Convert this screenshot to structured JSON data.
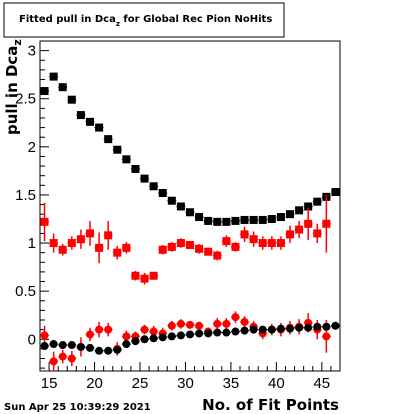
{
  "chart_data": {
    "type": "scatter",
    "title": {
      "main": "Fitted pull in Dca",
      "sub": "z",
      "rest": " for Global Rec Pion NoHits"
    },
    "xlabel": "No. of Fit Points",
    "ylabel": {
      "main": "pull in Dca",
      "sub": "z"
    },
    "xlim": [
      14,
      47
    ],
    "ylim": [
      -0.33,
      3.1
    ],
    "xticks": [
      15,
      20,
      25,
      30,
      35,
      40,
      45
    ],
    "yticks": [
      0,
      0.5,
      1,
      1.5,
      2,
      2.5,
      3
    ],
    "ytick_labels": [
      "0",
      "0.5",
      "1",
      "1.5",
      "2",
      "2.5",
      "3"
    ],
    "timestamp": "Sun Apr 25 10:39:29 2021",
    "series": [
      {
        "color": "#000000",
        "marker": "square",
        "points": [
          [
            14.5,
            2.58
          ],
          [
            15.5,
            2.73
          ],
          [
            16.5,
            2.62
          ],
          [
            17.5,
            2.49
          ],
          [
            18.5,
            2.33
          ],
          [
            19.5,
            2.26
          ],
          [
            20.5,
            2.2
          ],
          [
            21.5,
            2.08
          ],
          [
            22.5,
            1.97
          ],
          [
            23.5,
            1.87
          ],
          [
            24.5,
            1.77
          ],
          [
            25.5,
            1.67
          ],
          [
            26.5,
            1.59
          ],
          [
            27.5,
            1.52
          ],
          [
            28.5,
            1.44
          ],
          [
            29.5,
            1.38
          ],
          [
            30.5,
            1.32
          ],
          [
            31.5,
            1.27
          ],
          [
            32.5,
            1.23
          ],
          [
            33.5,
            1.22
          ],
          [
            34.5,
            1.22
          ],
          [
            35.5,
            1.23
          ],
          [
            36.5,
            1.24
          ],
          [
            37.5,
            1.24
          ],
          [
            38.5,
            1.24
          ],
          [
            39.5,
            1.25
          ],
          [
            40.5,
            1.27
          ],
          [
            41.5,
            1.3
          ],
          [
            42.5,
            1.34
          ],
          [
            43.5,
            1.38
          ],
          [
            44.5,
            1.43
          ],
          [
            45.5,
            1.48
          ],
          [
            46.5,
            1.53
          ]
        ]
      },
      {
        "color": "#ff0000",
        "marker": "square",
        "points": [
          [
            14.5,
            1.22,
            0.2
          ],
          [
            15.5,
            1.0,
            0.1
          ],
          [
            16.5,
            0.93,
            0.06
          ],
          [
            17.5,
            1.0,
            0.07
          ],
          [
            18.5,
            1.04,
            0.1
          ],
          [
            19.5,
            1.1,
            0.13
          ],
          [
            20.5,
            0.95,
            0.16
          ],
          [
            21.5,
            1.08,
            0.15
          ],
          [
            22.5,
            0.9,
            0.07
          ],
          [
            23.5,
            0.95,
            0.06
          ],
          [
            24.5,
            0.66,
            0.05
          ],
          [
            25.5,
            0.63,
            0.06
          ],
          [
            26.5,
            0.66,
            0.04
          ],
          [
            27.5,
            0.93,
            0.05
          ],
          [
            28.5,
            0.96,
            0.05
          ],
          [
            29.5,
            1.0,
            0.05
          ],
          [
            30.5,
            0.98,
            0.04
          ],
          [
            31.5,
            0.94,
            0.05
          ],
          [
            32.5,
            0.91,
            0.04
          ],
          [
            33.5,
            0.87,
            0.05
          ],
          [
            34.5,
            1.02,
            0.06
          ],
          [
            35.5,
            0.96,
            0.05
          ],
          [
            36.5,
            1.09,
            0.08
          ],
          [
            37.5,
            1.04,
            0.08
          ],
          [
            38.5,
            1.0,
            0.07
          ],
          [
            39.5,
            1.0,
            0.07
          ],
          [
            40.5,
            1.0,
            0.07
          ],
          [
            41.5,
            1.09,
            0.09
          ],
          [
            42.5,
            1.14,
            0.09
          ],
          [
            43.5,
            1.2,
            0.17
          ],
          [
            44.5,
            1.1,
            0.1
          ],
          [
            45.5,
            1.2,
            0.3
          ]
        ]
      },
      {
        "color": "#ff0000",
        "marker": "circle",
        "points": [
          [
            14.5,
            0.04,
            0.1
          ],
          [
            15.5,
            -0.23,
            0.1
          ],
          [
            16.5,
            -0.18,
            0.07
          ],
          [
            17.5,
            -0.2,
            0.08
          ],
          [
            18.5,
            -0.08,
            0.1
          ],
          [
            19.5,
            0.05,
            0.07
          ],
          [
            20.5,
            0.1,
            0.08
          ],
          [
            21.5,
            0.1,
            0.07
          ],
          [
            22.5,
            -0.1,
            0.07
          ],
          [
            23.5,
            0.03,
            0.06
          ],
          [
            24.5,
            0.03,
            0.05
          ],
          [
            25.5,
            0.1,
            0.05
          ],
          [
            26.5,
            0.08,
            0.06
          ],
          [
            27.5,
            0.06,
            0.06
          ],
          [
            28.5,
            0.14,
            0.05
          ],
          [
            29.5,
            0.16,
            0.05
          ],
          [
            30.5,
            0.15,
            0.04
          ],
          [
            31.5,
            0.14,
            0.04
          ],
          [
            32.5,
            0.08,
            0.04
          ],
          [
            33.5,
            0.16,
            0.06
          ],
          [
            34.5,
            0.16,
            0.06
          ],
          [
            35.5,
            0.23,
            0.06
          ],
          [
            36.5,
            0.18,
            0.06
          ],
          [
            37.5,
            0.13,
            0.06
          ],
          [
            38.5,
            0.06,
            0.06
          ],
          [
            39.5,
            0.1,
            0.06
          ],
          [
            40.5,
            0.1,
            0.07
          ],
          [
            41.5,
            0.12,
            0.07
          ],
          [
            42.5,
            0.13,
            0.08
          ],
          [
            43.5,
            0.17,
            0.1
          ],
          [
            44.5,
            0.1,
            0.1
          ],
          [
            45.5,
            0.03,
            0.17
          ]
        ]
      },
      {
        "color": "#000000",
        "marker": "circle",
        "points": [
          [
            14.5,
            -0.07
          ],
          [
            15.5,
            -0.05
          ],
          [
            16.5,
            -0.06
          ],
          [
            17.5,
            -0.06
          ],
          [
            18.5,
            -0.08
          ],
          [
            19.5,
            -0.09
          ],
          [
            20.5,
            -0.12
          ],
          [
            21.5,
            -0.12
          ],
          [
            22.5,
            -0.11
          ],
          [
            23.5,
            -0.05
          ],
          [
            24.5,
            -0.02
          ],
          [
            25.5,
            0.0
          ],
          [
            26.5,
            0.01
          ],
          [
            27.5,
            0.02
          ],
          [
            28.5,
            0.03
          ],
          [
            29.5,
            0.04
          ],
          [
            30.5,
            0.05
          ],
          [
            31.5,
            0.06
          ],
          [
            32.5,
            0.06
          ],
          [
            33.5,
            0.07
          ],
          [
            34.5,
            0.07
          ],
          [
            35.5,
            0.08
          ],
          [
            36.5,
            0.09
          ],
          [
            37.5,
            0.1
          ],
          [
            38.5,
            0.1
          ],
          [
            39.5,
            0.1
          ],
          [
            40.5,
            0.11
          ],
          [
            41.5,
            0.11
          ],
          [
            42.5,
            0.12
          ],
          [
            43.5,
            0.12
          ],
          [
            44.5,
            0.13
          ],
          [
            45.5,
            0.13
          ],
          [
            46.5,
            0.14
          ]
        ]
      }
    ]
  }
}
